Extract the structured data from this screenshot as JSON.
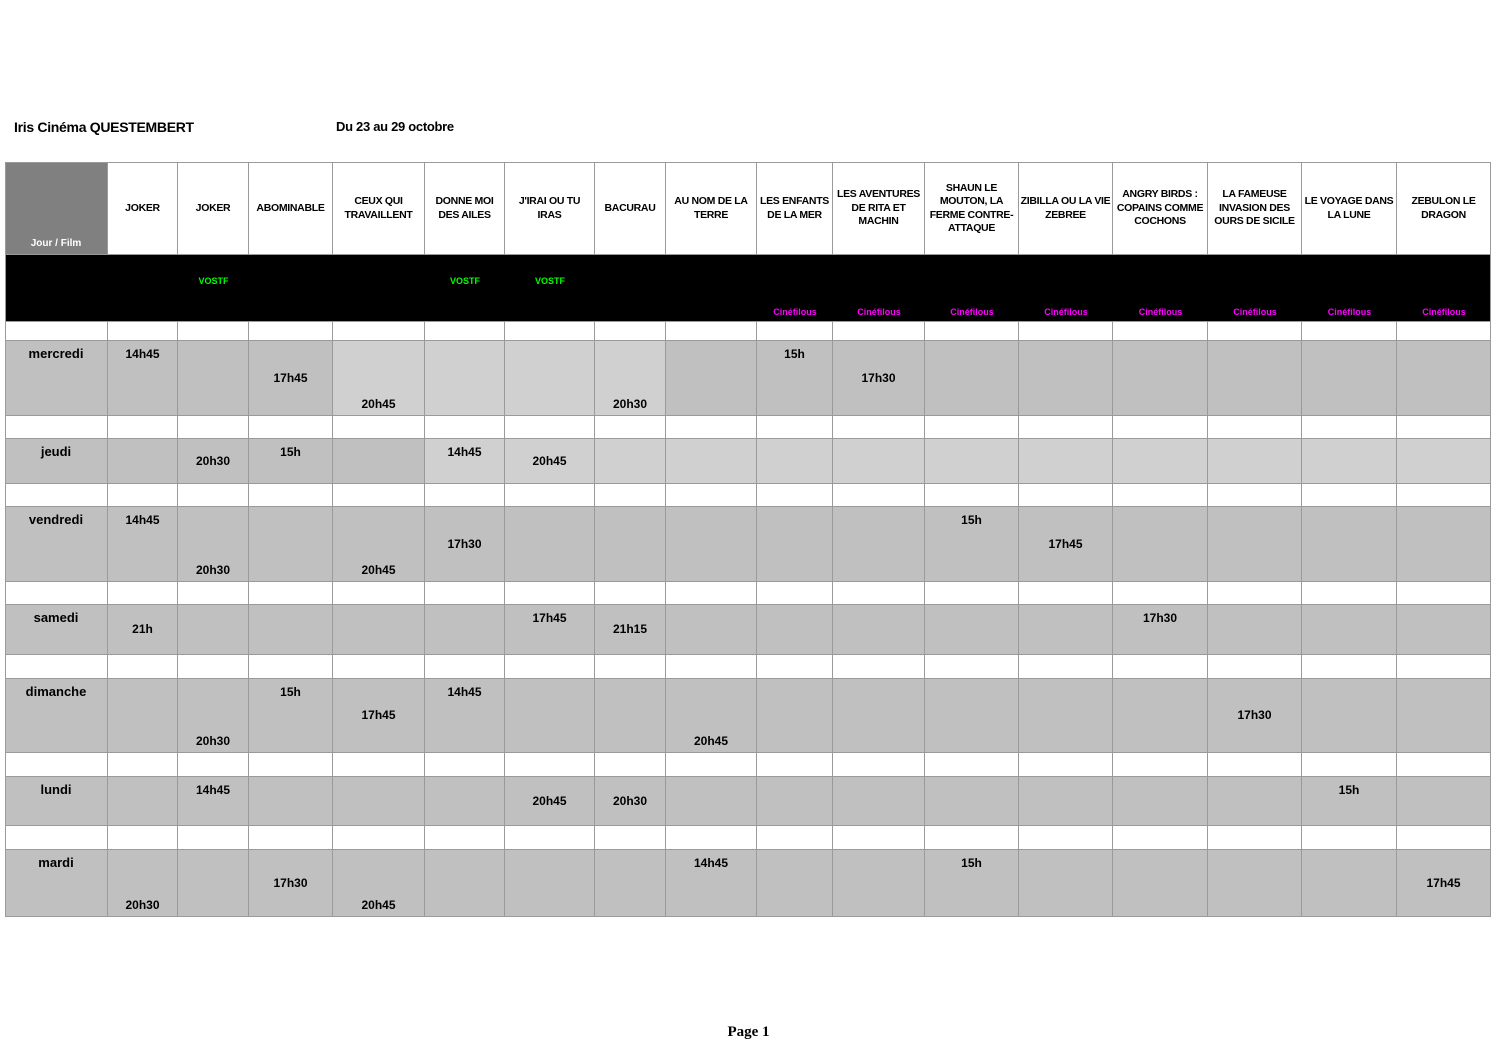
{
  "header": {
    "cinema": "Iris Cinéma QUESTEMBERT",
    "dates": "Du 23 au 29 octobre"
  },
  "corner_label": "Jour / Film",
  "films": [
    {
      "title": "JOKER",
      "tag": ""
    },
    {
      "title": "JOKER",
      "tag": "VOSTF"
    },
    {
      "title": "ABOMINABLE",
      "tag": ""
    },
    {
      "title": "CEUX QUI TRAVAILLENT",
      "tag": ""
    },
    {
      "title": "DONNE MOI DES AILES",
      "tag": "VOSTF"
    },
    {
      "title": "J'IRAI OU TU IRAS",
      "tag": "VOSTF"
    },
    {
      "title": "BACURAU",
      "tag": ""
    },
    {
      "title": "AU NOM DE LA TERRE",
      "tag": ""
    },
    {
      "title": "LES ENFANTS DE LA MER",
      "tag": "Cinéfilous"
    },
    {
      "title": "LES AVENTURES DE RITA ET MACHIN",
      "tag": "Cinéfilous"
    },
    {
      "title": "SHAUN LE MOUTON, LA FERME CONTRE-ATTAQUE",
      "tag": "Cinéfilous"
    },
    {
      "title": "ZIBILLA OU LA VIE ZEBREE",
      "tag": "Cinéfilous"
    },
    {
      "title": "ANGRY BIRDS : COPAINS COMME COCHONS",
      "tag": "Cinéfilous"
    },
    {
      "title": "LA FAMEUSE INVASION DES OURS DE SICILE",
      "tag": "Cinéfilous"
    },
    {
      "title": "LE VOYAGE DANS LA LUNE",
      "tag": "Cinéfilous"
    },
    {
      "title": "ZEBULON LE DRAGON",
      "tag": "Cinéfilous"
    }
  ],
  "days": [
    {
      "label": "mercredi",
      "times": [
        [
          "14h45",
          ""
        ],
        [],
        [
          "",
          "17h45"
        ],
        [
          "",
          "",
          "20h45"
        ],
        [],
        [],
        [
          "",
          "",
          "20h30"
        ],
        [],
        [
          "15h"
        ],
        [
          "",
          "17h30"
        ],
        [],
        [],
        [],
        [],
        [],
        []
      ]
    },
    {
      "label": "jeudi",
      "times": [
        [],
        [
          "",
          "20h30"
        ],
        [
          "15h"
        ],
        [],
        [
          "14h45"
        ],
        [
          "",
          "20h45"
        ],
        [],
        [],
        [],
        [],
        [],
        [],
        [],
        [],
        [],
        []
      ]
    },
    {
      "label": "vendredi",
      "times": [
        [
          "14h45"
        ],
        [
          "",
          "",
          "20h30"
        ],
        [],
        [
          "",
          "",
          "20h45"
        ],
        [
          "",
          "17h30"
        ],
        [],
        [],
        [],
        [],
        [],
        [
          "15h"
        ],
        [
          "",
          "17h45"
        ],
        [],
        [],
        [],
        []
      ]
    },
    {
      "label": "samedi",
      "times": [
        [
          "",
          "21h"
        ],
        [],
        [],
        [],
        [],
        [
          "17h45"
        ],
        [
          "",
          "21h15"
        ],
        [],
        [],
        [],
        [],
        [],
        [
          "17h30"
        ],
        [],
        [],
        []
      ]
    },
    {
      "label": "dimanche",
      "times": [
        [],
        [
          "",
          "",
          "20h30"
        ],
        [
          "15h"
        ],
        [
          "",
          "17h45"
        ],
        [
          "14h45"
        ],
        [],
        [],
        [
          "",
          "",
          "20h45"
        ],
        [],
        [],
        [],
        [],
        [],
        [
          "",
          "17h30"
        ],
        [],
        []
      ]
    },
    {
      "label": "lundi",
      "times": [
        [],
        [
          "14h45"
        ],
        [],
        [],
        [],
        [
          "",
          "20h45"
        ],
        [
          "",
          "20h30"
        ],
        [],
        [],
        [],
        [],
        [],
        [],
        [],
        [
          "15h"
        ],
        []
      ]
    },
    {
      "label": "mardi",
      "times": [
        [
          "",
          "",
          "20h30"
        ],
        [],
        [
          "",
          "17h30"
        ],
        [
          "",
          "",
          "20h45"
        ],
        [],
        [],
        [],
        [
          "14h45"
        ],
        [],
        [],
        [
          "15h"
        ],
        [],
        [],
        [],
        [],
        [
          "",
          "17h45"
        ]
      ]
    }
  ],
  "colors": {
    "corner_bg": "#808080",
    "tag_band_bg": "#000000",
    "row_bg": "#c0c0c0",
    "row_bg_alt": "#d0d0d0",
    "vostf": "#00ff00",
    "cinefilous": "#ff00ff"
  },
  "footer": "Page 1"
}
